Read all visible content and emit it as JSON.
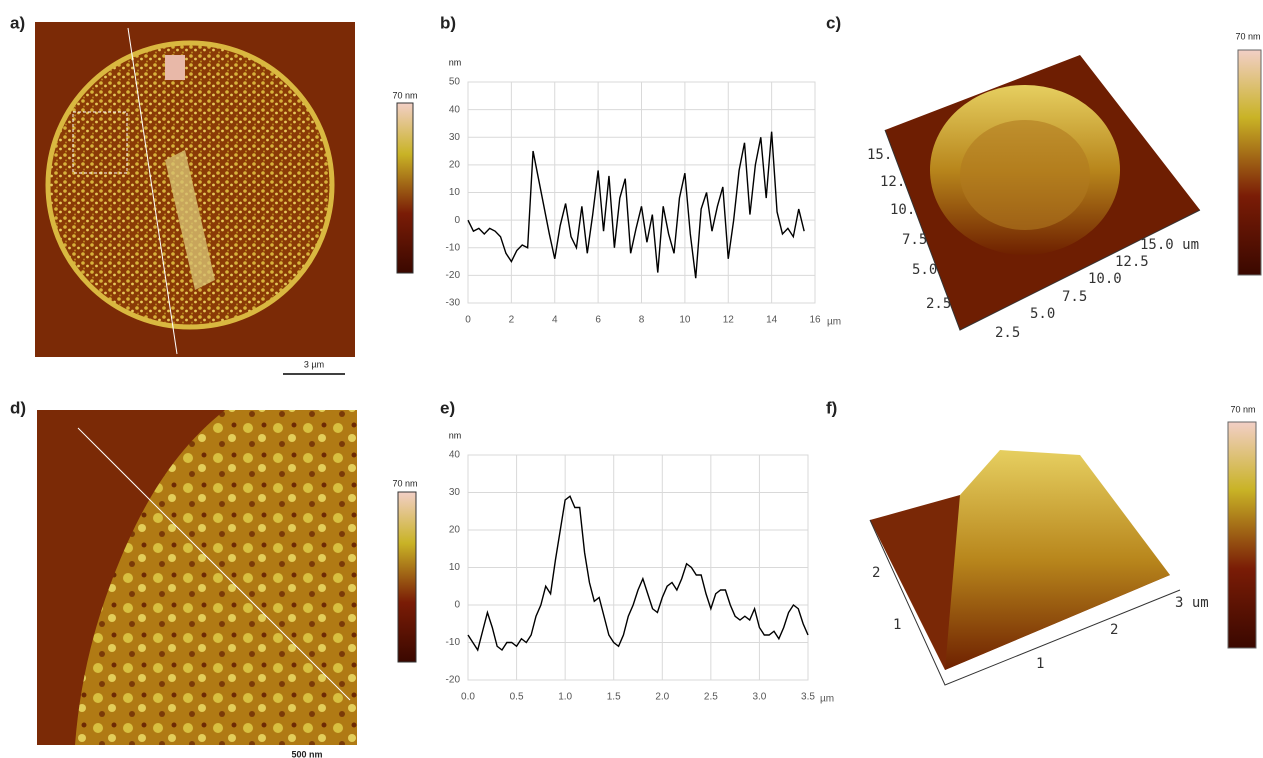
{
  "labels": [
    "a)",
    "b)",
    "c)",
    "d)",
    "e)",
    "f)"
  ],
  "colorbars": [
    "70 nm",
    "70 nm",
    "70 nm",
    "70 nm"
  ],
  "scale_bars": [
    "3 µm",
    "500 nm"
  ],
  "axes_3d": {
    "c": [
      "15.0 um",
      "12.5",
      "10.0",
      "7.5",
      "5.0",
      "2.5",
      "15.",
      "12.",
      "10.",
      "7.5",
      "5.0",
      "2.5"
    ],
    "f": [
      "3 um",
      "2",
      "1",
      "1",
      "2"
    ]
  },
  "chart_data": [
    {
      "type": "line",
      "y_label": "nm",
      "x_label": "µm",
      "x": [
        0,
        0.25,
        0.5,
        0.75,
        1,
        1.25,
        1.5,
        1.75,
        2,
        2.25,
        2.5,
        2.75,
        3,
        3.25,
        3.5,
        3.75,
        4,
        4.25,
        4.5,
        4.75,
        5,
        5.25,
        5.5,
        5.75,
        6,
        6.25,
        6.5,
        6.75,
        7,
        7.25,
        7.5,
        7.75,
        8,
        8.25,
        8.5,
        8.75,
        9,
        9.25,
        9.5,
        9.75,
        10,
        10.25,
        10.5,
        10.75,
        11,
        11.25,
        11.5,
        11.75,
        12,
        12.25,
        12.5,
        12.75,
        13,
        13.25,
        13.5,
        13.75,
        14,
        14.25,
        14.5,
        14.75,
        15,
        15.25,
        15.5
      ],
      "series": [
        {
          "color": "#000000",
          "values": [
            0,
            -4,
            -3,
            -5,
            -3,
            -4,
            -6,
            -12,
            -15,
            -11,
            -9,
            -10,
            25,
            15,
            5,
            -5,
            -14,
            -2,
            6,
            -6,
            -10,
            5,
            -12,
            2,
            18,
            -4,
            16,
            -10,
            8,
            15,
            -12,
            -3,
            5,
            -8,
            2,
            -19,
            5,
            -5,
            -12,
            8,
            17,
            -5,
            -21,
            4,
            10,
            -4,
            5,
            12,
            -14,
            0,
            18,
            28,
            2,
            20,
            30,
            8,
            32,
            3,
            -5,
            -3,
            -6,
            4,
            -4
          ]
        }
      ],
      "xlim": [
        0,
        16
      ],
      "xticks": [
        0,
        2,
        4,
        6,
        8,
        10,
        12,
        14,
        16
      ],
      "ylim": [
        -30,
        50
      ],
      "yticks": [
        -30,
        -20,
        -10,
        0,
        10,
        20,
        30,
        40,
        50
      ],
      "grid": true
    },
    {
      "type": "line",
      "y_label": "nm",
      "x_label": "µm",
      "x": [
        0,
        0.05,
        0.1,
        0.15,
        0.2,
        0.25,
        0.3,
        0.35,
        0.4,
        0.45,
        0.5,
        0.55,
        0.6,
        0.65,
        0.7,
        0.75,
        0.8,
        0.85,
        0.9,
        0.95,
        1,
        1.05,
        1.1,
        1.15,
        1.2,
        1.25,
        1.3,
        1.35,
        1.4,
        1.45,
        1.5,
        1.55,
        1.6,
        1.65,
        1.7,
        1.75,
        1.8,
        1.85,
        1.9,
        1.95,
        2,
        2.05,
        2.1,
        2.15,
        2.2,
        2.25,
        2.3,
        2.35,
        2.4,
        2.45,
        2.5,
        2.55,
        2.6,
        2.65,
        2.7,
        2.75,
        2.8,
        2.85,
        2.9,
        2.95,
        3,
        3.05,
        3.1,
        3.15,
        3.2,
        3.25,
        3.3,
        3.35,
        3.4,
        3.45,
        3.5
      ],
      "series": [
        {
          "color": "#000000",
          "values": [
            -8,
            -10,
            -12,
            -7,
            -2,
            -6,
            -11,
            -12,
            -10,
            -10,
            -11,
            -9,
            -10,
            -8,
            -3,
            0,
            5,
            3,
            12,
            20,
            28,
            29,
            26,
            26,
            14,
            6,
            1,
            2,
            -3,
            -8,
            -10,
            -11,
            -8,
            -3,
            0,
            4,
            7,
            3,
            -1,
            -2,
            2,
            5,
            6,
            4,
            7,
            11,
            10,
            8,
            8,
            3,
            -1,
            3,
            4,
            4,
            0,
            -3,
            -4,
            -3,
            -4,
            -1,
            -6,
            -8,
            -8,
            -7,
            -9,
            -6,
            -2,
            0,
            -1,
            -5,
            -8
          ]
        }
      ],
      "xlim": [
        0,
        3.5
      ],
      "xticks": [
        {
          "value": 0,
          "label": "0.0"
        },
        0.5,
        {
          "value": 1,
          "label": "1.0"
        },
        1.5,
        {
          "value": 2,
          "label": "2.0"
        },
        2.5,
        {
          "value": 3,
          "label": "3.0"
        },
        3.5
      ],
      "ylim": [
        -20,
        40
      ],
      "yticks": [
        -20,
        -10,
        0,
        10,
        20,
        30,
        40
      ],
      "grid": true
    }
  ]
}
